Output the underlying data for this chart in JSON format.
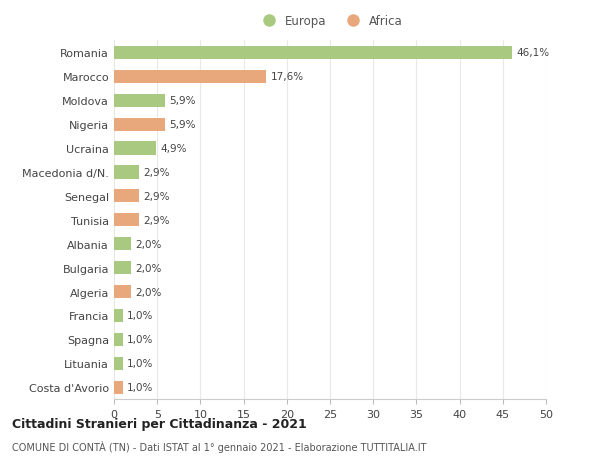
{
  "countries": [
    "Romania",
    "Marocco",
    "Moldova",
    "Nigeria",
    "Ucraina",
    "Macedonia d/N.",
    "Senegal",
    "Tunisia",
    "Albania",
    "Bulgaria",
    "Algeria",
    "Francia",
    "Spagna",
    "Lituania",
    "Costa d'Avorio"
  ],
  "values": [
    46.1,
    17.6,
    5.9,
    5.9,
    4.9,
    2.9,
    2.9,
    2.9,
    2.0,
    2.0,
    2.0,
    1.0,
    1.0,
    1.0,
    1.0
  ],
  "labels": [
    "46,1%",
    "17,6%",
    "5,9%",
    "5,9%",
    "4,9%",
    "2,9%",
    "2,9%",
    "2,9%",
    "2,0%",
    "2,0%",
    "2,0%",
    "1,0%",
    "1,0%",
    "1,0%",
    "1,0%"
  ],
  "continents": [
    "Europa",
    "Africa",
    "Europa",
    "Africa",
    "Europa",
    "Europa",
    "Africa",
    "Africa",
    "Europa",
    "Europa",
    "Africa",
    "Europa",
    "Europa",
    "Europa",
    "Africa"
  ],
  "color_europa": "#a8c97f",
  "color_africa": "#e8a87c",
  "background_color": "#ffffff",
  "grid_color": "#e8e8e8",
  "xlim": [
    0,
    50
  ],
  "xticks": [
    0,
    5,
    10,
    15,
    20,
    25,
    30,
    35,
    40,
    45,
    50
  ],
  "title": "Cittadini Stranieri per Cittadinanza - 2021",
  "subtitle": "COMUNE DI CONTÀ (TN) - Dati ISTAT al 1° gennaio 2021 - Elaborazione TUTTITALIA.IT",
  "legend_europa": "Europa",
  "legend_africa": "Africa",
  "bar_height": 0.55
}
